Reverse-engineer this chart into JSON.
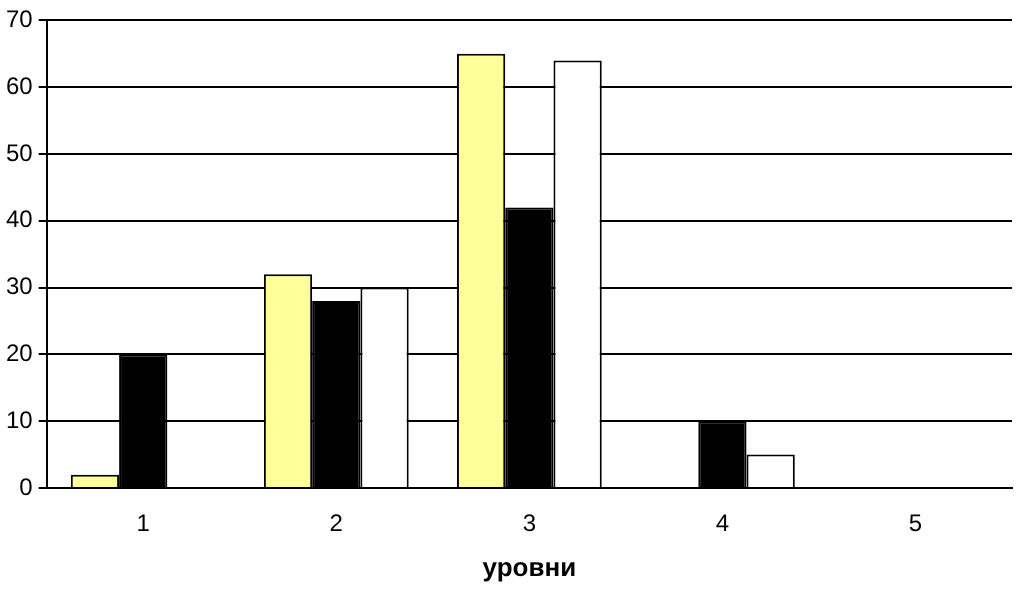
{
  "chart_data": {
    "type": "bar",
    "xlabel": "уровни",
    "categories": [
      "1",
      "2",
      "3",
      "4",
      "5"
    ],
    "series": [
      {
        "color": "#ffff99",
        "values": [
          2,
          32,
          65,
          0,
          0
        ]
      },
      {
        "color": "#000000",
        "values": [
          20,
          28,
          42,
          10,
          0
        ]
      },
      {
        "color": "#ffffff",
        "values": [
          0,
          30,
          64,
          5,
          0
        ]
      }
    ],
    "ylim": [
      0,
      70
    ],
    "yticks": [
      0,
      10,
      20,
      30,
      40,
      50,
      60,
      70
    ],
    "grid": "y",
    "legend": false
  }
}
